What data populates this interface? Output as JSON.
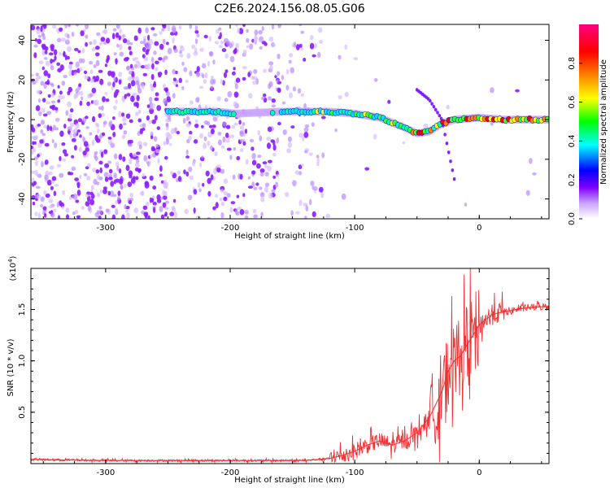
{
  "title": "C2E6.2024.156.08.05.G06",
  "chart_data": [
    {
      "type": "heatmap",
      "xlabel": "Height of straight line (km)",
      "ylabel": "Frequency (Hz)",
      "xlim": [
        -360,
        56
      ],
      "ylim": [
        -50,
        48
      ],
      "x_ticks": [
        -300,
        -200,
        -100,
        0
      ],
      "x_tick_labels": [
        "-300",
        "-200",
        "-100",
        "0"
      ],
      "y_ticks": [
        -40,
        -20,
        0,
        20,
        40
      ],
      "y_tick_labels": [
        "-40",
        "-20",
        "0",
        "20",
        "40"
      ],
      "colorbar": {
        "label": "Normalized spectral amplitude",
        "range": [
          0,
          1
        ],
        "ticks": [
          0,
          0.2,
          0.4,
          0.6,
          0.8
        ],
        "tick_labels": [
          "0.0",
          "0.2",
          "0.4",
          "0.6",
          "0.8"
        ],
        "colors": [
          "#ffffff",
          "#8000ff",
          "#0000ff",
          "#00ffff",
          "#00ff00",
          "#ffff00",
          "#ff8000",
          "#ff0000",
          "#ff0080"
        ]
      },
      "main_trace": {
        "x": [
          -250,
          -230,
          -210,
          -195,
          -160,
          -140,
          -120,
          -100,
          -80,
          -60,
          -50,
          -40,
          -30,
          -20,
          0,
          20,
          56
        ],
        "y": [
          4,
          4,
          4,
          3,
          4,
          4,
          4,
          3,
          1,
          -4,
          -7,
          -6,
          -2,
          0,
          1,
          0,
          0
        ]
      },
      "descending_trace": {
        "x": [
          -50,
          -40,
          -30,
          -25,
          -20
        ],
        "y": [
          15,
          10,
          0,
          -15,
          -30
        ]
      },
      "grid": false
    },
    {
      "type": "line",
      "xlabel": "Height of straight line (km)",
      "ylabel": "SNR (10 * v/v)",
      "y_multiplier_label": "(x10",
      "y_multiplier_exponent": "4",
      "y_multiplier_close": ")",
      "xlim": [
        -360,
        56
      ],
      "ylim": [
        0,
        1.9
      ],
      "x_ticks": [
        -300,
        -200,
        -100,
        0
      ],
      "x_tick_labels": [
        "-300",
        "-200",
        "-100",
        "0"
      ],
      "y_ticks": [
        0.5,
        1.0,
        1.5
      ],
      "y_tick_labels": [
        "0.5",
        "1.0",
        "1.5"
      ],
      "color": "#ee3333",
      "series": [
        {
          "x": [
            -360,
            -300,
            -200,
            -140,
            -120,
            -110,
            -100,
            -90,
            -80,
            -70,
            -60,
            -50,
            -40,
            -30,
            -25,
            -20,
            -15,
            -10,
            -5,
            0,
            10,
            20,
            30,
            40,
            56
          ],
          "y": [
            0.04,
            0.03,
            0.03,
            0.03,
            0.05,
            0.08,
            0.12,
            0.18,
            0.22,
            0.18,
            0.22,
            0.3,
            0.45,
            0.7,
            0.9,
            1.0,
            1.05,
            1.15,
            1.25,
            1.35,
            1.45,
            1.48,
            1.5,
            1.52,
            1.53
          ]
        }
      ],
      "grid": false
    }
  ]
}
